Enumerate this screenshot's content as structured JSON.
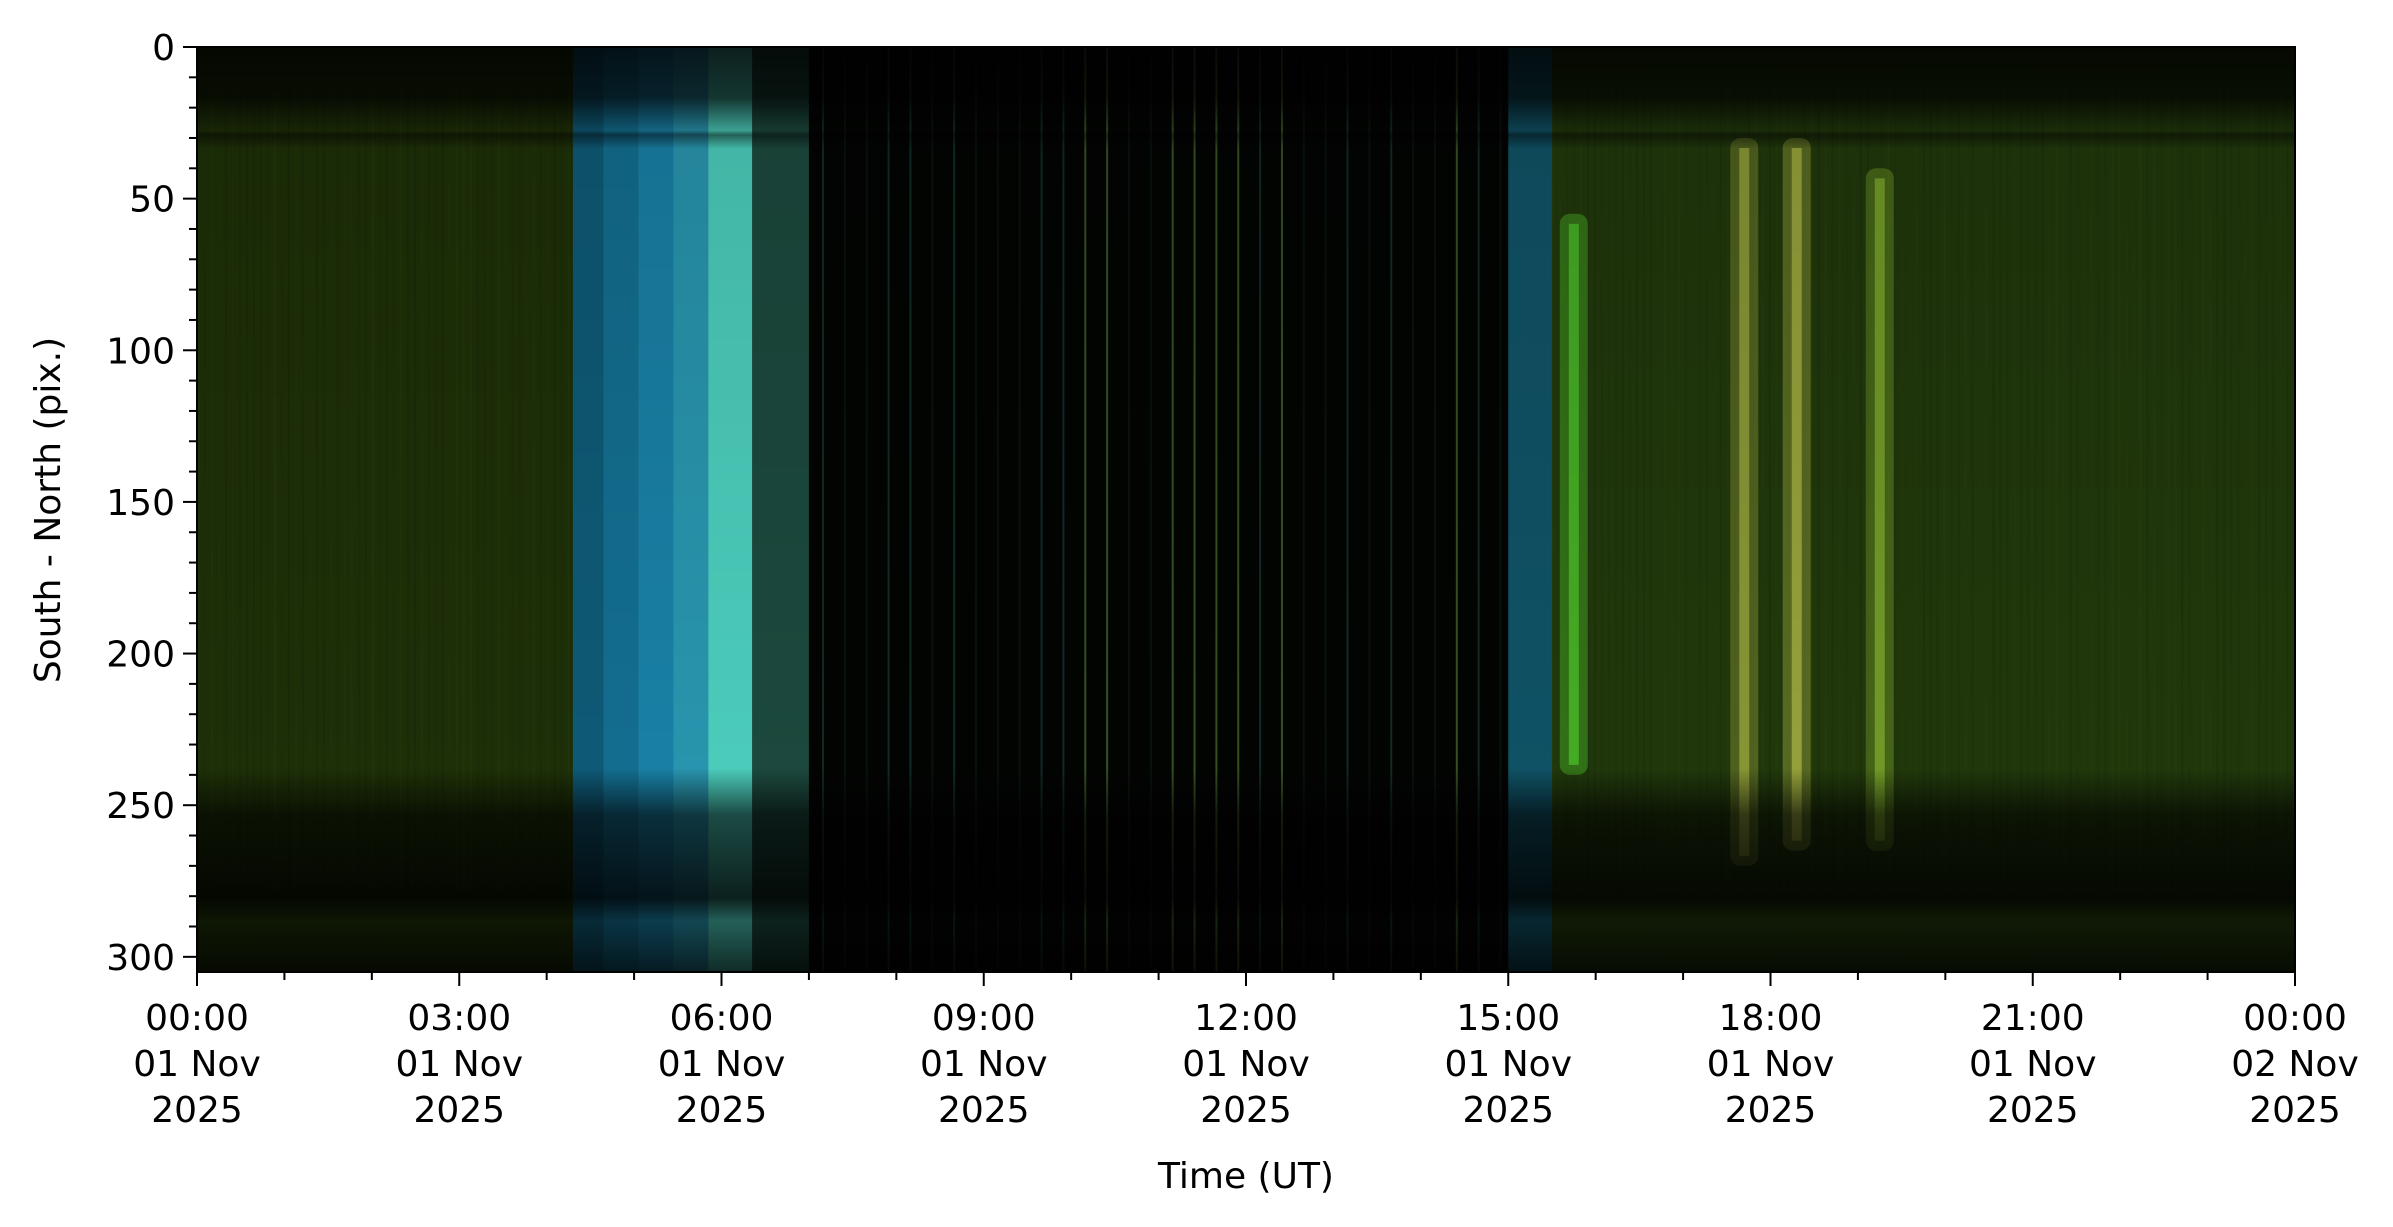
{
  "chart_data": {
    "type": "heatmap",
    "title": "",
    "xlabel": "Time (UT)",
    "ylabel": "South - North (pix.)",
    "x_range": [
      "2025-11-01 00:00",
      "2025-11-02 00:00"
    ],
    "ylim": [
      305,
      0
    ],
    "y_inverted": true,
    "grid": false,
    "legend": "none",
    "x_ticks": [
      {
        "hour": 0,
        "lines": [
          "00:00",
          "01 Nov",
          "2025"
        ]
      },
      {
        "hour": 3,
        "lines": [
          "03:00",
          "01 Nov",
          "2025"
        ]
      },
      {
        "hour": 6,
        "lines": [
          "06:00",
          "01 Nov",
          "2025"
        ]
      },
      {
        "hour": 9,
        "lines": [
          "09:00",
          "01 Nov",
          "2025"
        ]
      },
      {
        "hour": 12,
        "lines": [
          "12:00",
          "01 Nov",
          "2025"
        ]
      },
      {
        "hour": 15,
        "lines": [
          "15:00",
          "01 Nov",
          "2025"
        ]
      },
      {
        "hour": 18,
        "lines": [
          "18:00",
          "01 Nov",
          "2025"
        ]
      },
      {
        "hour": 21,
        "lines": [
          "21:00",
          "01 Nov",
          "2025"
        ]
      },
      {
        "hour": 24,
        "lines": [
          "00:00",
          "02 Nov",
          "2025"
        ]
      }
    ],
    "y_ticks": [
      0,
      50,
      100,
      150,
      200,
      250,
      300
    ],
    "colors": {
      "night_green": "#1c2e0a",
      "twilight_cyan": "#1a86ad",
      "dawn_cyan_bright": "#4fd6c4",
      "daylight_dark": "#020402",
      "aurora_green": "#4ec42a",
      "aurora_yellow": "#b8c24a"
    },
    "segments": [
      {
        "start_h": 0.0,
        "end_h": 4.3,
        "kind": "night",
        "color": "#1f3208"
      },
      {
        "start_h": 4.3,
        "end_h": 4.65,
        "kind": "twilight",
        "color": "#0f5e7c"
      },
      {
        "start_h": 4.65,
        "end_h": 5.05,
        "kind": "twilight",
        "color": "#147396"
      },
      {
        "start_h": 5.05,
        "end_h": 5.45,
        "kind": "twilight",
        "color": "#1a86ad"
      },
      {
        "start_h": 5.45,
        "end_h": 5.85,
        "kind": "twilight",
        "color": "#2a9cb6"
      },
      {
        "start_h": 5.85,
        "end_h": 6.35,
        "kind": "twilight",
        "color": "#4fd6c4"
      },
      {
        "start_h": 6.35,
        "end_h": 7.0,
        "kind": "twilight",
        "color": "#1d4c40"
      },
      {
        "start_h": 7.0,
        "end_h": 15.0,
        "kind": "daylight",
        "color": "#020402"
      },
      {
        "start_h": 15.0,
        "end_h": 15.5,
        "kind": "twilight",
        "color": "#10566a"
      },
      {
        "start_h": 15.5,
        "end_h": 24.0,
        "kind": "night",
        "color": "#223a0c"
      }
    ],
    "aurora_features": [
      {
        "time_h": 15.75,
        "pix_from": 55,
        "pix_to": 240,
        "color": "#4ec42a",
        "intensity": 0.8
      },
      {
        "time_h": 17.7,
        "pix_from": 30,
        "pix_to": 270,
        "color": "#b8c24a",
        "intensity": 0.6
      },
      {
        "time_h": 18.3,
        "pix_from": 30,
        "pix_to": 265,
        "color": "#b8c24a",
        "intensity": 0.7
      },
      {
        "time_h": 19.25,
        "pix_from": 40,
        "pix_to": 265,
        "color": "#8fbf32",
        "intensity": 0.65
      }
    ]
  }
}
